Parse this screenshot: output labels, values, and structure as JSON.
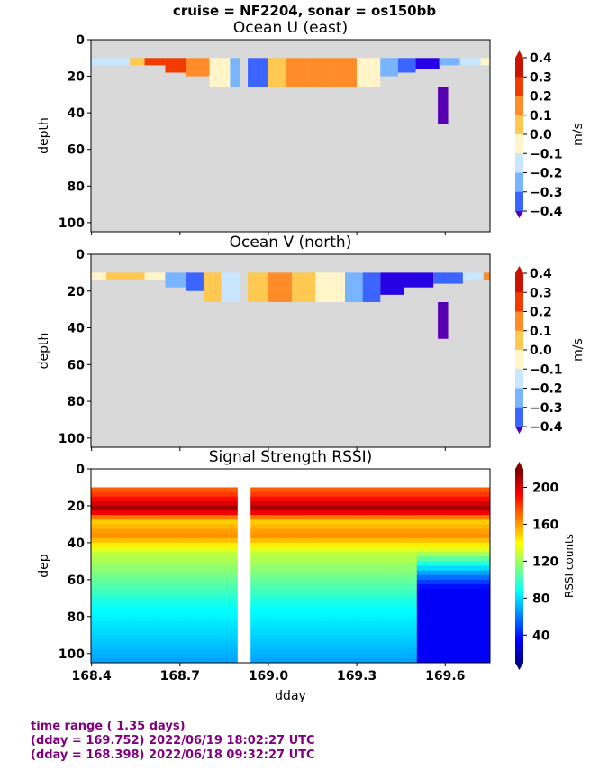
{
  "figure": {
    "suptitle": "cruise = NF2204,  sonar = os150bb"
  },
  "footer": {
    "line1": "time range ( 1.35 days)",
    "line2": "(dday = 169.752) 2022/06/19 18:02:27 UTC",
    "line3": "(dday = 168.398) 2022/06/18 09:32:27 UTC"
  },
  "colors": {
    "nodata": "#d9d9d9",
    "footer_text": "#800080"
  },
  "chart_data": [
    {
      "type": "heatmap",
      "title": "Ocean U (east)",
      "ylabel": "depth",
      "xlim": [
        168.398,
        169.752
      ],
      "ylim": [
        105,
        0
      ],
      "yticks": [
        0,
        20,
        40,
        60,
        80,
        100
      ],
      "xticks": [
        168.4,
        168.7,
        169.0,
        169.3,
        169.6
      ],
      "show_xticklabels": false,
      "colorbar": {
        "label": "m/s",
        "ticks": [
          "0.4",
          "0.3",
          "0.2",
          "0.1",
          "0.0",
          "−0.1",
          "−0.2",
          "−0.3",
          "−0.4"
        ],
        "levels": [
          0.4,
          0.3,
          0.2,
          0.1,
          0.0,
          -0.1,
          -0.2,
          -0.3,
          -0.4
        ],
        "colors": [
          "#c81400",
          "#f03c00",
          "#ff8c28",
          "#ffc850",
          "#fff5c8",
          "#c8e6ff",
          "#78b4ff",
          "#3c64ff",
          "#2800e6",
          "#5a00b4"
        ],
        "extend": "both"
      },
      "valid_depth": [
        10,
        25
      ],
      "gap": [
        168.905,
        168.93
      ],
      "segments": [
        {
          "x": [
            168.4,
            168.53
          ],
          "depth": [
            10,
            14
          ],
          "value": -0.05
        },
        {
          "x": [
            168.53,
            168.58
          ],
          "depth": [
            10,
            14
          ],
          "value": 0.15
        },
        {
          "x": [
            168.58,
            168.65
          ],
          "depth": [
            10,
            14
          ],
          "value": 0.32
        },
        {
          "x": [
            168.65,
            168.72
          ],
          "depth": [
            10,
            18
          ],
          "value": 0.38
        },
        {
          "x": [
            168.72,
            168.8
          ],
          "depth": [
            10,
            20
          ],
          "value": 0.22
        },
        {
          "x": [
            168.8,
            168.87
          ],
          "depth": [
            10,
            26
          ],
          "value": 0.05
        },
        {
          "x": [
            168.87,
            168.905
          ],
          "depth": [
            10,
            26
          ],
          "value": -0.12
        },
        {
          "x": [
            168.93,
            169.0
          ],
          "depth": [
            10,
            26
          ],
          "value": -0.22
        },
        {
          "x": [
            169.0,
            169.06
          ],
          "depth": [
            10,
            26
          ],
          "value": 0.12
        },
        {
          "x": [
            169.06,
            169.14
          ],
          "depth": [
            10,
            26
          ],
          "value": 0.25
        },
        {
          "x": [
            169.14,
            169.22
          ],
          "depth": [
            10,
            26
          ],
          "value": 0.28
        },
        {
          "x": [
            169.22,
            169.3
          ],
          "depth": [
            10,
            26
          ],
          "value": 0.22
        },
        {
          "x": [
            169.3,
            169.38
          ],
          "depth": [
            10,
            26
          ],
          "value": 0.08
        },
        {
          "x": [
            169.38,
            169.44
          ],
          "depth": [
            10,
            20
          ],
          "value": -0.12
        },
        {
          "x": [
            169.44,
            169.5
          ],
          "depth": [
            10,
            18
          ],
          "value": -0.28
        },
        {
          "x": [
            169.5,
            169.58
          ],
          "depth": [
            10,
            16
          ],
          "value": -0.38
        },
        {
          "x": [
            169.58,
            169.65
          ],
          "depth": [
            10,
            14
          ],
          "value": -0.15
        },
        {
          "x": [
            169.65,
            169.72
          ],
          "depth": [
            10,
            14
          ],
          "value": -0.05
        },
        {
          "x": [
            169.72,
            169.752
          ],
          "depth": [
            10,
            14
          ],
          "value": 0.05
        },
        {
          "x": [
            169.575,
            169.61
          ],
          "depth": [
            26,
            46
          ],
          "value": -0.45
        }
      ]
    },
    {
      "type": "heatmap",
      "title": "Ocean V (north)",
      "ylabel": "depth",
      "xlim": [
        168.398,
        169.752
      ],
      "ylim": [
        105,
        0
      ],
      "yticks": [
        0,
        20,
        40,
        60,
        80,
        100
      ],
      "xticks": [
        168.4,
        168.7,
        169.0,
        169.3,
        169.6
      ],
      "show_xticklabels": false,
      "colorbar": {
        "label": "m/s",
        "ticks": [
          "0.4",
          "0.3",
          "0.2",
          "0.1",
          "0.0",
          "−0.1",
          "−0.2",
          "−0.3",
          "−0.4"
        ],
        "levels": [
          0.4,
          0.3,
          0.2,
          0.1,
          0.0,
          -0.1,
          -0.2,
          -0.3,
          -0.4
        ],
        "colors": [
          "#c81400",
          "#f03c00",
          "#ff8c28",
          "#ffc850",
          "#fff5c8",
          "#c8e6ff",
          "#78b4ff",
          "#3c64ff",
          "#2800e6",
          "#5a00b4"
        ],
        "extend": "both"
      },
      "valid_depth": [
        10,
        25
      ],
      "gap": [
        168.905,
        168.93
      ],
      "segments": [
        {
          "x": [
            168.4,
            168.45
          ],
          "depth": [
            10,
            14
          ],
          "value": 0.05
        },
        {
          "x": [
            168.45,
            168.58
          ],
          "depth": [
            10,
            14
          ],
          "value": 0.18
        },
        {
          "x": [
            168.58,
            168.65
          ],
          "depth": [
            10,
            14
          ],
          "value": 0.05
        },
        {
          "x": [
            168.65,
            168.72
          ],
          "depth": [
            10,
            18
          ],
          "value": -0.12
        },
        {
          "x": [
            168.72,
            168.78
          ],
          "depth": [
            10,
            20
          ],
          "value": -0.22
        },
        {
          "x": [
            168.78,
            168.84
          ],
          "depth": [
            10,
            26
          ],
          "value": 0.12
        },
        {
          "x": [
            168.84,
            168.905
          ],
          "depth": [
            10,
            26
          ],
          "value": -0.05
        },
        {
          "x": [
            168.93,
            169.0
          ],
          "depth": [
            10,
            26
          ],
          "value": 0.18
        },
        {
          "x": [
            169.0,
            169.08
          ],
          "depth": [
            10,
            26
          ],
          "value": 0.25
        },
        {
          "x": [
            169.08,
            169.16
          ],
          "depth": [
            10,
            26
          ],
          "value": 0.15
        },
        {
          "x": [
            169.16,
            169.26
          ],
          "depth": [
            10,
            26
          ],
          "value": 0.05
        },
        {
          "x": [
            169.26,
            169.32
          ],
          "depth": [
            10,
            26
          ],
          "value": -0.12
        },
        {
          "x": [
            169.32,
            169.38
          ],
          "depth": [
            10,
            26
          ],
          "value": -0.22
        },
        {
          "x": [
            169.38,
            169.46
          ],
          "depth": [
            10,
            22
          ],
          "value": -0.32
        },
        {
          "x": [
            169.46,
            169.56
          ],
          "depth": [
            10,
            18
          ],
          "value": -0.32
        },
        {
          "x": [
            169.56,
            169.66
          ],
          "depth": [
            10,
            16
          ],
          "value": -0.22
        },
        {
          "x": [
            169.66,
            169.73
          ],
          "depth": [
            10,
            14
          ],
          "value": -0.05
        },
        {
          "x": [
            169.73,
            169.752
          ],
          "depth": [
            10,
            14
          ],
          "value": 0.25
        },
        {
          "x": [
            169.575,
            169.61
          ],
          "depth": [
            26,
            46
          ],
          "value": -0.45
        }
      ]
    },
    {
      "type": "heatmap",
      "title": "Signal Strength RSSI)",
      "ylabel": "dep",
      "xlabel": "dday",
      "xlim": [
        168.398,
        169.752
      ],
      "ylim": [
        105,
        0
      ],
      "yticks": [
        0,
        20,
        40,
        60,
        80,
        100
      ],
      "xticks": [
        168.4,
        168.7,
        169.0,
        169.3,
        169.6
      ],
      "xticklabels": [
        "168.4",
        "168.7",
        "169.0",
        "169.3",
        "169.6"
      ],
      "show_xticklabels": true,
      "colorbar": {
        "label": "RSSI counts",
        "ticks": [
          "200",
          "160",
          "120",
          "80",
          "40"
        ],
        "tick_values": [
          200,
          160,
          120,
          80,
          40
        ],
        "range": [
          10,
          220
        ],
        "colormap": "jet",
        "extend": "both"
      },
      "valid_depth": [
        10,
        105
      ],
      "gap": [
        168.905,
        168.93
      ],
      "profile": [
        {
          "depth": 12,
          "value": 175
        },
        {
          "depth": 22,
          "value": 215
        },
        {
          "depth": 28,
          "value": 150
        },
        {
          "depth": 36,
          "value": 165
        },
        {
          "depth": 45,
          "value": 130
        },
        {
          "depth": 60,
          "value": 110
        },
        {
          "depth": 75,
          "value": 90
        },
        {
          "depth": 90,
          "value": 80
        },
        {
          "depth": 104,
          "value": 70
        }
      ],
      "low_signal_region": {
        "x": [
          169.5,
          169.752
        ],
        "depth": [
          45,
          105
        ],
        "value": 35
      }
    }
  ]
}
